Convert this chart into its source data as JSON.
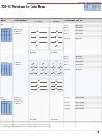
{
  "page_bg": "#ffffff",
  "header_bar_color": "#c0392b",
  "header_text": "Relay and Timer Specifications",
  "table_line_color": "#aaaaaa",
  "table_line_color_dark": "#666666",
  "text_color": "#111111",
  "col_header_bg": "#d8d8d8",
  "row_alt_bg": "#f2f2f2",
  "relay_img_bg": "#a0bcd8",
  "relay_img_border": "#6688aa",
  "wiring_bg": "#e8eef8",
  "cat_col_bg_even": "#e8e8e8",
  "cat_col_bg_odd": "#f5f5f5",
  "footer_text": "Rockwell Automation Publication 700-SG001F-EN-P - June 2013",
  "page_number": "35",
  "header_line_color": "#cccccc",
  "title_bar_color": "#d0d8e0",
  "sub_header_blue": "#c8daea"
}
